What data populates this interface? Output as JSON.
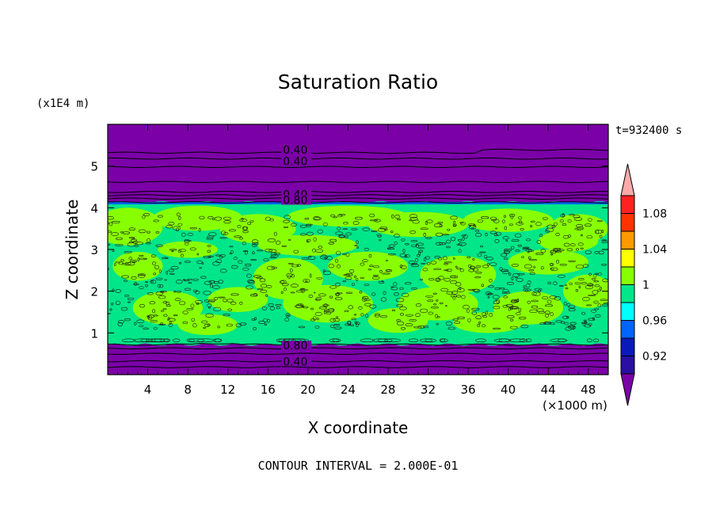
{
  "chart_data": {
    "type": "heatmap",
    "title": "Saturation Ratio",
    "xlabel": "X coordinate",
    "ylabel": "Z coordinate",
    "x_unit": "(×1000 m)",
    "y_unit": "(x1E4 m)",
    "time_label": "t=932400 s",
    "footer": "CONTOUR INTERVAL = 2.000E-01",
    "xlim": [
      0,
      50
    ],
    "ylim": [
      0,
      6
    ],
    "x_ticks": [
      4,
      8,
      12,
      16,
      20,
      24,
      28,
      32,
      36,
      40,
      44,
      48
    ],
    "x_tick_labels": [
      "4",
      "8",
      "12",
      "16",
      "20",
      "24",
      "28",
      "32",
      "36",
      "40",
      "44",
      "48"
    ],
    "y_ticks": [
      1,
      2,
      3,
      4,
      5
    ],
    "y_tick_labels": [
      "1",
      "2",
      "3",
      "4",
      "5"
    ],
    "contour_labels": [
      {
        "text": "0.40",
        "x": 17.5,
        "y": 5.35
      },
      {
        "text": "0.40",
        "x": 17.5,
        "y": 5.08
      },
      {
        "text": "0.40",
        "x": 17.5,
        "y": 4.28
      },
      {
        "text": "0.80",
        "x": 17.5,
        "y": 4.15
      },
      {
        "text": "0.80",
        "x": 17.5,
        "y": 0.66
      },
      {
        "text": "0.40",
        "x": 17.5,
        "y": 0.28
      }
    ],
    "contour_lines_z": [
      5.32,
      5.18,
      4.98,
      4.62,
      4.38,
      4.3,
      4.22,
      4.13,
      0.72,
      0.63,
      0.5,
      0.32,
      0.18
    ],
    "fields": {
      "background_z": [
        0,
        6
      ],
      "humid_band_z": [
        0.72,
        4.12
      ],
      "near_one_band_z": [
        0.8,
        4.05
      ]
    },
    "colorbar": {
      "colors": [
        "#7b00a8",
        "#2a0fa3",
        "#0a1ab8",
        "#0064ff",
        "#00ffff",
        "#00e688",
        "#88ff00",
        "#ffff00",
        "#ff9900",
        "#ff3300",
        "#ff2222",
        "#ffaaaa"
      ],
      "tick_labels": [
        "0.92",
        "0.96",
        "1",
        "1.04",
        "1.08"
      ],
      "tick_values": [
        0.92,
        0.96,
        1.0,
        1.04,
        1.08
      ],
      "range": [
        0.9,
        1.1
      ]
    }
  }
}
